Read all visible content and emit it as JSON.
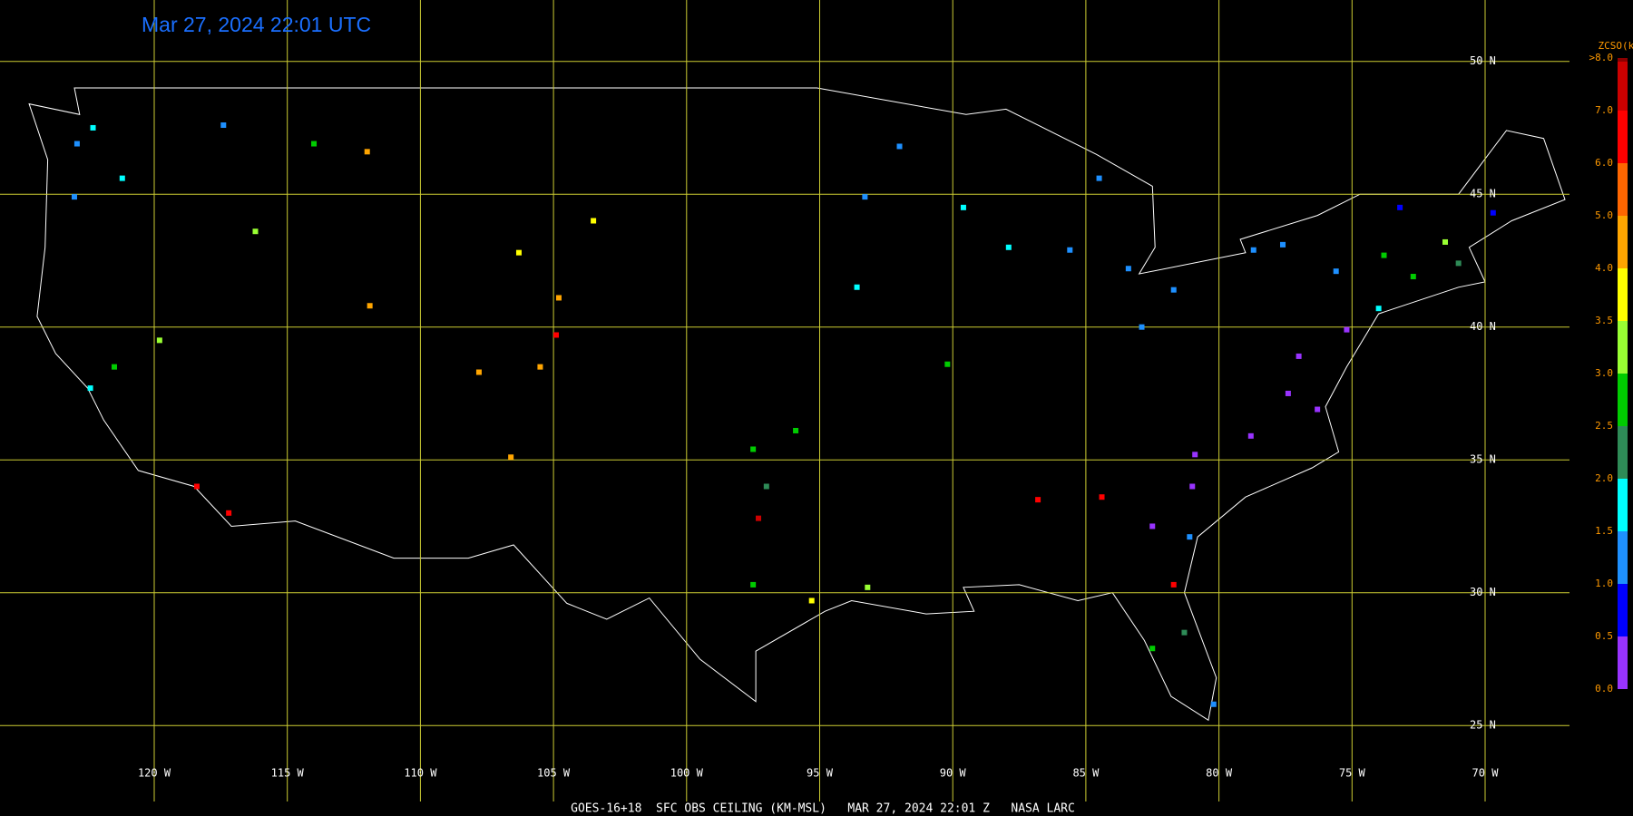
{
  "title": "Mar 27, 2024 22:01 UTC",
  "footer": "GOES-16+18  SFC OBS CEILING (KM-MSL)   MAR 27, 2024 22:01 Z   NASA LARC",
  "legend": {
    "title": "ZCSO(km)",
    "ticks": [
      {
        "value": 0,
        "label": "0.0"
      },
      {
        "value": 0.5,
        "label": "0.5"
      },
      {
        "value": 1,
        "label": "1.0"
      },
      {
        "value": 1.5,
        "label": "1.5"
      },
      {
        "value": 2,
        "label": "2.0"
      },
      {
        "value": 2.5,
        "label": "2.5"
      },
      {
        "value": 3,
        "label": "3.0"
      },
      {
        "value": 3.5,
        "label": "3.5"
      },
      {
        "value": 4,
        "label": "4.0"
      },
      {
        "value": 5,
        "label": "5.0"
      },
      {
        "value": 6,
        "label": "6.0"
      },
      {
        "value": 7,
        "label": "7.0"
      },
      {
        "value": 8,
        "label": ">8.0"
      }
    ],
    "colors": [
      "#9933ff",
      "#0000ff",
      "#1e90ff",
      "#00ffff",
      "#2e8b57",
      "#00cc00",
      "#99ff33",
      "#ffff00",
      "#ffa500",
      "#ff6600",
      "#ff0000",
      "#cc0000",
      "#8b0000"
    ]
  },
  "grid": {
    "lon": [
      {
        "value": -120,
        "label": "120 W"
      },
      {
        "value": -115,
        "label": "115 W"
      },
      {
        "value": -110,
        "label": "110 W"
      },
      {
        "value": -105,
        "label": "105 W"
      },
      {
        "value": -100,
        "label": "100 W"
      },
      {
        "value": -95,
        "label": "95 W"
      },
      {
        "value": -90,
        "label": "90 W"
      },
      {
        "value": -85,
        "label": "85 W"
      },
      {
        "value": -80,
        "label": "80 W"
      },
      {
        "value": -75,
        "label": "75 W"
      },
      {
        "value": -70,
        "label": "70 W"
      }
    ],
    "lat": [
      {
        "value": 50,
        "label": "50 N"
      },
      {
        "value": 45,
        "label": "45 N"
      },
      {
        "value": 40,
        "label": "40 N"
      },
      {
        "value": 35,
        "label": "35 N"
      },
      {
        "value": 30,
        "label": "30 N"
      },
      {
        "value": 25,
        "label": "25 N"
      }
    ]
  },
  "stations": [
    {
      "lon": -122.3,
      "lat": 47.5,
      "ceiling": 1.7
    },
    {
      "lon": -122.9,
      "lat": 46.9,
      "ceiling": 1.2
    },
    {
      "lon": -123.0,
      "lat": 44.9,
      "ceiling": 1.3
    },
    {
      "lon": -121.2,
      "lat": 45.6,
      "ceiling": 1.7
    },
    {
      "lon": -117.4,
      "lat": 47.6,
      "ceiling": 1.3
    },
    {
      "lon": -116.2,
      "lat": 43.6,
      "ceiling": 3.2
    },
    {
      "lon": -114.0,
      "lat": 46.9,
      "ceiling": 2.7
    },
    {
      "lon": -111.9,
      "lat": 40.8,
      "ceiling": 4.5
    },
    {
      "lon": -112.0,
      "lat": 46.6,
      "ceiling": 4.5
    },
    {
      "lon": -122.4,
      "lat": 37.7,
      "ceiling": 1.7
    },
    {
      "lon": -121.5,
      "lat": 38.5,
      "ceiling": 2.7
    },
    {
      "lon": -119.8,
      "lat": 39.5,
      "ceiling": 3.2
    },
    {
      "lon": -118.4,
      "lat": 34.0,
      "ceiling": 6.5
    },
    {
      "lon": -117.2,
      "lat": 33.0,
      "ceiling": 6.5
    },
    {
      "lon": -104.9,
      "lat": 39.7,
      "ceiling": 6.5
    },
    {
      "lon": -105.5,
      "lat": 38.5,
      "ceiling": 4.5
    },
    {
      "lon": -107.8,
      "lat": 38.3,
      "ceiling": 4.5
    },
    {
      "lon": -106.6,
      "lat": 35.1,
      "ceiling": 4.5
    },
    {
      "lon": -104.8,
      "lat": 41.1,
      "ceiling": 4.5
    },
    {
      "lon": -106.3,
      "lat": 42.8,
      "ceiling": 3.7
    },
    {
      "lon": -103.5,
      "lat": 44.0,
      "ceiling": 3.7
    },
    {
      "lon": -97.5,
      "lat": 35.4,
      "ceiling": 2.7
    },
    {
      "lon": -97.0,
      "lat": 34.0,
      "ceiling": 2.2
    },
    {
      "lon": -95.9,
      "lat": 36.1,
      "ceiling": 2.7
    },
    {
      "lon": -97.3,
      "lat": 32.8,
      "ceiling": 7.5
    },
    {
      "lon": -97.5,
      "lat": 30.3,
      "ceiling": 2.7
    },
    {
      "lon": -95.3,
      "lat": 29.7,
      "ceiling": 3.7
    },
    {
      "lon": -93.2,
      "lat": 30.2,
      "ceiling": 3.2
    },
    {
      "lon": -93.3,
      "lat": 44.9,
      "ceiling": 1.2
    },
    {
      "lon": -92.0,
      "lat": 46.8,
      "ceiling": 1.2
    },
    {
      "lon": -89.6,
      "lat": 44.5,
      "ceiling": 1.7
    },
    {
      "lon": -87.9,
      "lat": 43.0,
      "ceiling": 1.7
    },
    {
      "lon": -85.6,
      "lat": 42.9,
      "ceiling": 1.2
    },
    {
      "lon": -83.4,
      "lat": 42.2,
      "ceiling": 1.2
    },
    {
      "lon": -84.5,
      "lat": 45.6,
      "ceiling": 1.2
    },
    {
      "lon": -82.9,
      "lat": 40.0,
      "ceiling": 1.2
    },
    {
      "lon": -81.7,
      "lat": 41.4,
      "ceiling": 1.2
    },
    {
      "lon": -93.6,
      "lat": 41.5,
      "ceiling": 1.7
    },
    {
      "lon": -90.2,
      "lat": 38.6,
      "ceiling": 2.7
    },
    {
      "lon": -86.8,
      "lat": 33.5,
      "ceiling": 6.5
    },
    {
      "lon": -84.4,
      "lat": 33.6,
      "ceiling": 6.5
    },
    {
      "lon": -81.0,
      "lat": 34.0,
      "ceiling": 0.3
    },
    {
      "lon": -80.9,
      "lat": 35.2,
      "ceiling": 0.3
    },
    {
      "lon": -78.8,
      "lat": 35.9,
      "ceiling": 0.3
    },
    {
      "lon": -77.4,
      "lat": 37.5,
      "ceiling": 0.3
    },
    {
      "lon": -77.0,
      "lat": 38.9,
      "ceiling": 0.3
    },
    {
      "lon": -76.3,
      "lat": 36.9,
      "ceiling": 0.3
    },
    {
      "lon": -75.2,
      "lat": 39.9,
      "ceiling": 0.3
    },
    {
      "lon": -82.5,
      "lat": 32.5,
      "ceiling": 0.3
    },
    {
      "lon": -81.1,
      "lat": 32.1,
      "ceiling": 1.2
    },
    {
      "lon": -74.0,
      "lat": 40.7,
      "ceiling": 1.7
    },
    {
      "lon": -73.8,
      "lat": 42.7,
      "ceiling": 2.7
    },
    {
      "lon": -72.7,
      "lat": 41.9,
      "ceiling": 2.7
    },
    {
      "lon": -71.0,
      "lat": 42.4,
      "ceiling": 2.2
    },
    {
      "lon": -71.5,
      "lat": 43.2,
      "ceiling": 3.2
    },
    {
      "lon": -73.2,
      "lat": 44.5,
      "ceiling": 0.8
    },
    {
      "lon": -69.7,
      "lat": 44.3,
      "ceiling": 0.8
    },
    {
      "lon": -82.5,
      "lat": 27.9,
      "ceiling": 2.7
    },
    {
      "lon": -81.3,
      "lat": 28.5,
      "ceiling": 2.2
    },
    {
      "lon": -80.2,
      "lat": 25.8,
      "ceiling": 1.2
    },
    {
      "lon": -81.7,
      "lat": 30.3,
      "ceiling": 6.0
    },
    {
      "lon": -75.6,
      "lat": 42.1,
      "ceiling": 1.2
    },
    {
      "lon": -78.7,
      "lat": 42.9,
      "ceiling": 1.2
    },
    {
      "lon": -77.6,
      "lat": 43.1,
      "ceiling": 1.2
    }
  ]
}
